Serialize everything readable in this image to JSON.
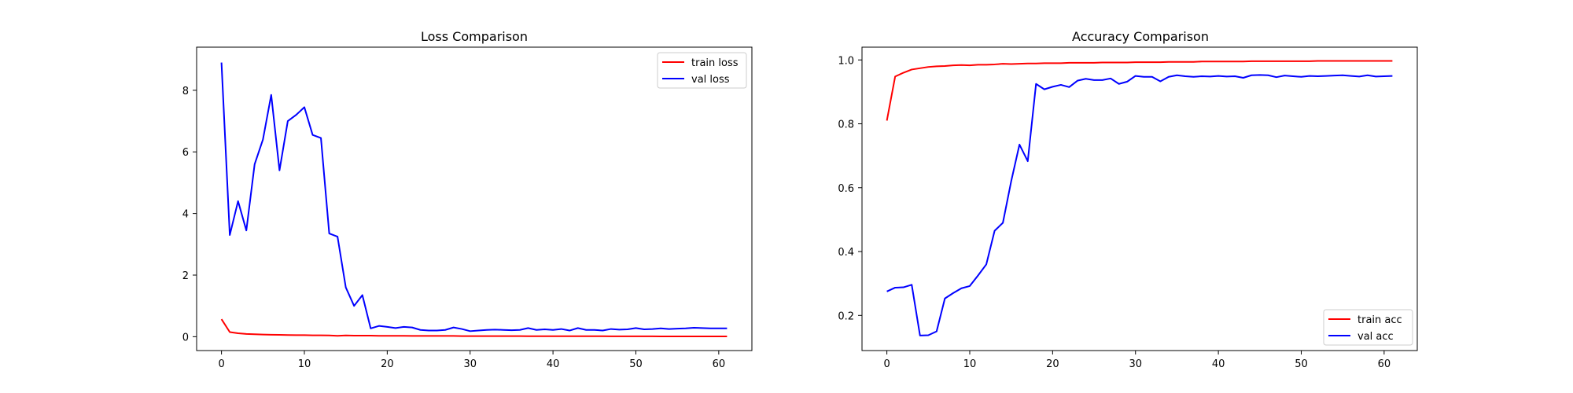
{
  "colors": {
    "train": "#ff0000",
    "val": "#0000ff",
    "axis": "#000000",
    "background": "#ffffff"
  },
  "chart_data": [
    {
      "type": "line",
      "title": "Loss Comparison",
      "xlabel": "",
      "ylabel": "",
      "xlim": [
        -3,
        64
      ],
      "ylim": [
        -0.45,
        9.4
      ],
      "xticks": [
        0,
        10,
        20,
        30,
        40,
        50,
        60
      ],
      "yticks": [
        0,
        2,
        4,
        6,
        8
      ],
      "grid": false,
      "legend": "upper right",
      "x": [
        0,
        1,
        2,
        3,
        4,
        5,
        6,
        7,
        8,
        9,
        10,
        11,
        12,
        13,
        14,
        15,
        16,
        17,
        18,
        19,
        20,
        21,
        22,
        23,
        24,
        25,
        26,
        27,
        28,
        29,
        30,
        31,
        32,
        33,
        34,
        35,
        36,
        37,
        38,
        39,
        40,
        41,
        42,
        43,
        44,
        45,
        46,
        47,
        48,
        49,
        50,
        51,
        52,
        53,
        54,
        55,
        56,
        57,
        58,
        59,
        60,
        61
      ],
      "series": [
        {
          "name": "train loss",
          "color": "#ff0000",
          "values": [
            0.57,
            0.15,
            0.11,
            0.09,
            0.08,
            0.07,
            0.065,
            0.06,
            0.055,
            0.05,
            0.05,
            0.045,
            0.045,
            0.04,
            0.03,
            0.04,
            0.035,
            0.035,
            0.035,
            0.03,
            0.03,
            0.03,
            0.03,
            0.025,
            0.025,
            0.025,
            0.025,
            0.025,
            0.025,
            0.02,
            0.02,
            0.02,
            0.02,
            0.02,
            0.02,
            0.02,
            0.02,
            0.015,
            0.015,
            0.015,
            0.015,
            0.015,
            0.015,
            0.015,
            0.015,
            0.015,
            0.015,
            0.012,
            0.012,
            0.012,
            0.012,
            0.012,
            0.012,
            0.01,
            0.01,
            0.01,
            0.01,
            0.01,
            0.01,
            0.01,
            0.01,
            0.01
          ]
        },
        {
          "name": "val loss",
          "color": "#0000ff",
          "values": [
            8.9,
            3.3,
            4.4,
            3.45,
            5.6,
            6.4,
            7.85,
            5.4,
            7.0,
            7.2,
            7.45,
            6.55,
            6.45,
            3.35,
            3.25,
            1.6,
            1.0,
            1.35,
            0.27,
            0.35,
            0.32,
            0.28,
            0.32,
            0.3,
            0.22,
            0.2,
            0.2,
            0.22,
            0.3,
            0.25,
            0.18,
            0.2,
            0.22,
            0.23,
            0.22,
            0.21,
            0.22,
            0.28,
            0.22,
            0.24,
            0.22,
            0.25,
            0.2,
            0.28,
            0.22,
            0.22,
            0.2,
            0.25,
            0.23,
            0.24,
            0.28,
            0.24,
            0.25,
            0.27,
            0.25,
            0.26,
            0.27,
            0.29,
            0.28,
            0.27,
            0.27,
            0.27
          ]
        }
      ]
    },
    {
      "type": "line",
      "title": "Accuracy Comparison",
      "xlabel": "",
      "ylabel": "",
      "xlim": [
        -3,
        64
      ],
      "ylim": [
        0.09,
        1.04
      ],
      "xticks": [
        0,
        10,
        20,
        30,
        40,
        50,
        60
      ],
      "yticks": [
        0.2,
        0.4,
        0.6,
        0.8,
        1.0
      ],
      "ytick_labels": [
        "0.2",
        "0.4",
        "0.6",
        "0.8",
        "1.0"
      ],
      "grid": false,
      "legend": "lower right",
      "x": [
        0,
        1,
        2,
        3,
        4,
        5,
        6,
        7,
        8,
        9,
        10,
        11,
        12,
        13,
        14,
        15,
        16,
        17,
        18,
        19,
        20,
        21,
        22,
        23,
        24,
        25,
        26,
        27,
        28,
        29,
        30,
        31,
        32,
        33,
        34,
        35,
        36,
        37,
        38,
        39,
        40,
        41,
        42,
        43,
        44,
        45,
        46,
        47,
        48,
        49,
        50,
        51,
        52,
        53,
        54,
        55,
        56,
        57,
        58,
        59,
        60,
        61
      ],
      "series": [
        {
          "name": "train acc",
          "color": "#ff0000",
          "values": [
            0.81,
            0.948,
            0.96,
            0.97,
            0.974,
            0.978,
            0.98,
            0.981,
            0.983,
            0.984,
            0.983,
            0.985,
            0.985,
            0.986,
            0.988,
            0.987,
            0.988,
            0.989,
            0.989,
            0.99,
            0.99,
            0.99,
            0.991,
            0.991,
            0.991,
            0.991,
            0.992,
            0.992,
            0.992,
            0.992,
            0.993,
            0.993,
            0.993,
            0.993,
            0.994,
            0.994,
            0.994,
            0.994,
            0.995,
            0.995,
            0.995,
            0.995,
            0.995,
            0.995,
            0.996,
            0.996,
            0.996,
            0.996,
            0.996,
            0.996,
            0.996,
            0.996,
            0.997,
            0.997,
            0.997,
            0.997,
            0.997,
            0.997,
            0.997,
            0.997,
            0.997,
            0.997
          ]
        },
        {
          "name": "val acc",
          "color": "#0000ff",
          "values": [
            0.275,
            0.287,
            0.288,
            0.296,
            0.137,
            0.138,
            0.15,
            0.253,
            0.27,
            0.285,
            0.292,
            0.325,
            0.36,
            0.465,
            0.49,
            0.62,
            0.735,
            0.683,
            0.925,
            0.908,
            0.916,
            0.922,
            0.915,
            0.935,
            0.941,
            0.937,
            0.937,
            0.942,
            0.925,
            0.932,
            0.95,
            0.947,
            0.947,
            0.933,
            0.947,
            0.952,
            0.949,
            0.947,
            0.949,
            0.948,
            0.95,
            0.948,
            0.949,
            0.944,
            0.952,
            0.953,
            0.952,
            0.946,
            0.951,
            0.949,
            0.947,
            0.95,
            0.949,
            0.95,
            0.951,
            0.952,
            0.95,
            0.948,
            0.952,
            0.948,
            0.949,
            0.95
          ]
        }
      ]
    }
  ]
}
